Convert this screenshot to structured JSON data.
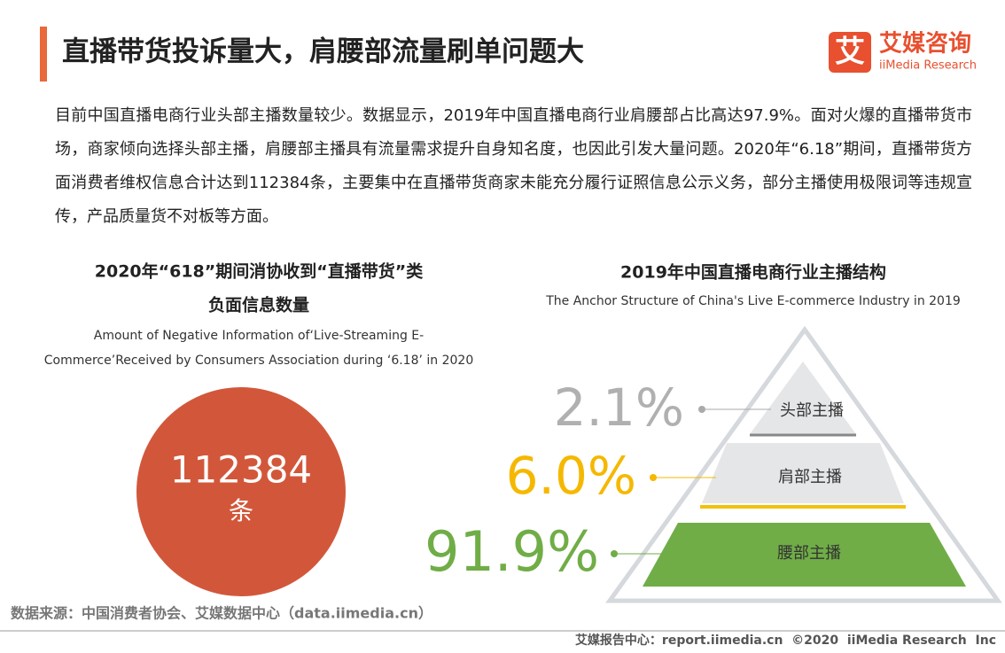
{
  "header": {
    "title": "直播带货投诉量大，肩腰部流量刷单问题大"
  },
  "logo": {
    "mark": "艾",
    "cn": "艾媒咨询",
    "en": "iiMedia Research"
  },
  "paragraph": "目前中国直播电商行业头部主播数量较少。数据显示，2019年中国直播电商行业肩腰部占比高达97.9%。面对火爆的直播带货市场，商家倾向选择头部主播，肩腰部主播具有流量需求提升自身知名度，也因此引发大量问题。2020年“6.18”期间，直播带货方面消费者维权信息合计达到112384条，主要集中在直播带货商家未能充分履行证照信息公示义务，部分主播使用极限词等违规宣传，产品质量货不对板等方面。",
  "left": {
    "title": [
      "2020年“618”期间消协收到“直播带货”类",
      "负面信息数量"
    ],
    "subtitle": [
      "Amount of Negative Information of‘Live-Streaming E-",
      "Commerce’Received by Consumers Association during ‘6.18’ in 2020"
    ],
    "value": "112384",
    "unit": "条"
  },
  "right": {
    "title": "2019年中国直播电商行业主播结构",
    "subtitle": "The Anchor Structure of China's Live E-commerce Industry in 2019",
    "tiers": [
      {
        "value": "2.1%",
        "label": "头部主播"
      },
      {
        "value": "6.0%",
        "label": "肩部主播"
      },
      {
        "value": "91.9%",
        "label": "腰部主播"
      }
    ]
  },
  "source": "数据来源：中国消费者协会、艾媒数据中心（data.iimedia.cn）",
  "footer": "艾媒报告中心：report.iimedia.cn  ©2020  iiMedia Research  Inc"
}
